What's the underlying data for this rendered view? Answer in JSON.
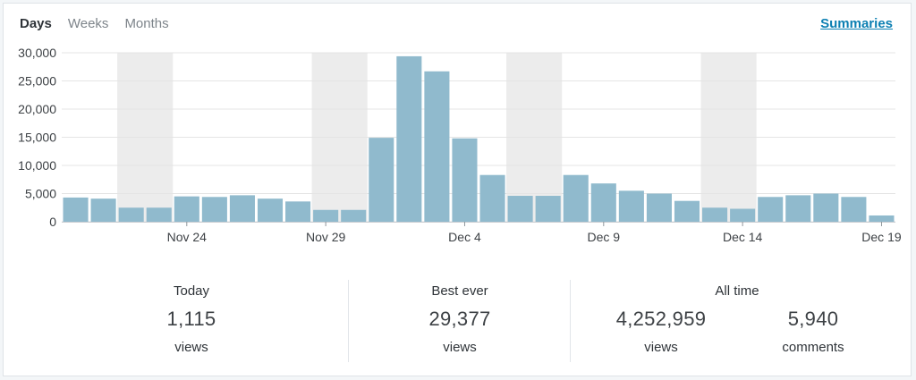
{
  "tabs": {
    "days": "Days",
    "weeks": "Weeks",
    "months": "Months"
  },
  "summaries_link": "Summaries",
  "colors": {
    "bar": "#90bacd",
    "weekend_band": "#ececec",
    "grid": "#e4e4e4",
    "link": "#0b7fb2"
  },
  "chart_data": {
    "type": "bar",
    "x": [
      "Nov 20",
      "Nov 21",
      "Nov 22",
      "Nov 23",
      "Nov 24",
      "Nov 25",
      "Nov 26",
      "Nov 27",
      "Nov 28",
      "Nov 29",
      "Nov 30",
      "Dec 1",
      "Dec 2",
      "Dec 3",
      "Dec 4",
      "Dec 5",
      "Dec 6",
      "Dec 7",
      "Dec 8",
      "Dec 9",
      "Dec 10",
      "Dec 11",
      "Dec 12",
      "Dec 13",
      "Dec 14",
      "Dec 15",
      "Dec 16",
      "Dec 17",
      "Dec 18",
      "Dec 19"
    ],
    "values": [
      4300,
      4100,
      2500,
      2500,
      4500,
      4400,
      4700,
      4100,
      3600,
      2100,
      2100,
      14900,
      29377,
      26700,
      14800,
      8300,
      4600,
      4600,
      8300,
      6800,
      5500,
      5000,
      3700,
      2500,
      2300,
      4400,
      4700,
      5000,
      4400,
      1115
    ],
    "weekend_bands": [
      [
        2,
        3
      ],
      [
        9,
        10
      ],
      [
        16,
        17
      ],
      [
        23,
        24
      ]
    ],
    "x_tick_labels": [
      "Nov 24",
      "Nov 29",
      "Dec 4",
      "Dec 9",
      "Dec 14",
      "Dec 19"
    ],
    "x_tick_indices": [
      4,
      9,
      14,
      19,
      24,
      29
    ],
    "y_ticks": [
      0,
      5000,
      10000,
      15000,
      20000,
      25000,
      30000
    ],
    "y_tick_labels": [
      "0",
      "5,000",
      "10,000",
      "15,000",
      "20,000",
      "25,000",
      "30,000"
    ],
    "ylim": [
      0,
      30000
    ],
    "grid": true,
    "legend": "none"
  },
  "stats": {
    "today": {
      "label": "Today",
      "value": "1,115",
      "unit": "views"
    },
    "best": {
      "label": "Best ever",
      "value": "29,377",
      "unit": "views"
    },
    "all_time": {
      "label": "All time",
      "views_value": "4,252,959",
      "views_unit": "views",
      "comments_value": "5,940",
      "comments_unit": "comments"
    }
  }
}
